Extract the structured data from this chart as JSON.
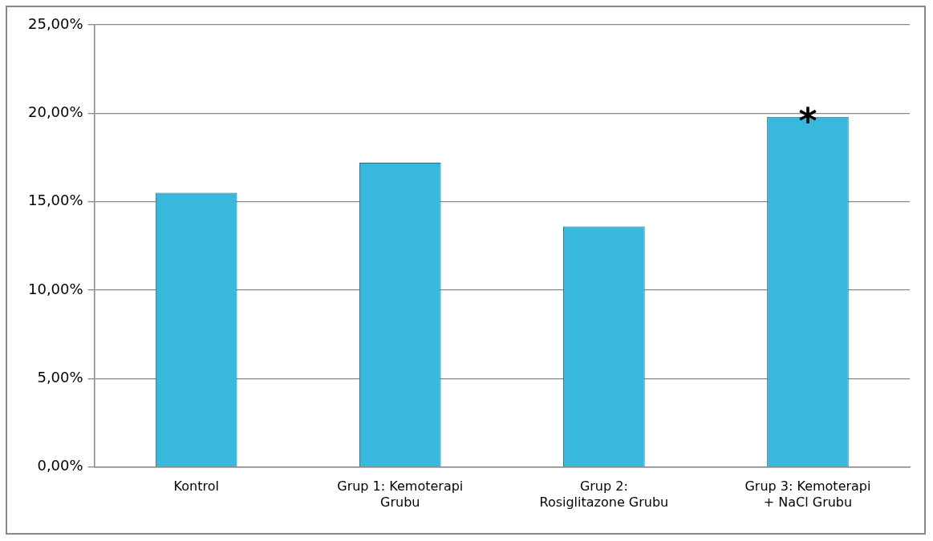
{
  "chart_data": {
    "type": "bar",
    "categories": [
      "Kontrol",
      "Grup 1: Kemoterapi Grubu",
      "Grup 2: Rosiglitazone Grubu",
      "Grup 3: Kemoterapi + NaCl Grubu"
    ],
    "values": [
      15.5,
      17.2,
      13.6,
      19.8
    ],
    "color": "#38b8dc",
    "ylim": [
      0,
      25
    ],
    "yticks": [
      {
        "value": 0,
        "label": "0,00%"
      },
      {
        "value": 5,
        "label": "5,00%"
      },
      {
        "value": 10,
        "label": "10,00%"
      },
      {
        "value": 15,
        "label": "15,00%"
      },
      {
        "value": 20,
        "label": "20,00%"
      },
      {
        "value": 25,
        "label": "25,00%"
      }
    ],
    "grid": "y",
    "legend": false,
    "annotations": [
      {
        "text": "*",
        "x": "Grup 3: Kemoterapi + NaCl Grubu",
        "y": 19.8
      }
    ]
  }
}
